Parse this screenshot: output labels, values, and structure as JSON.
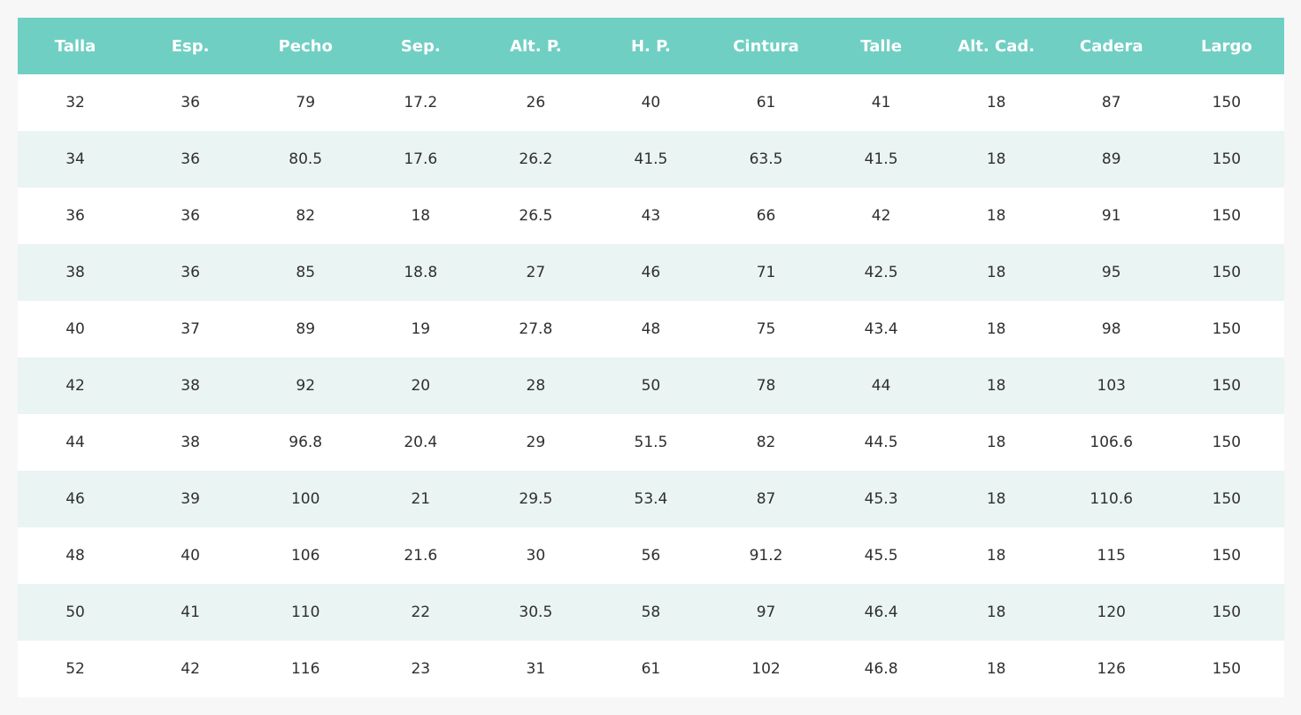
{
  "table": {
    "header": [
      "Talla",
      "Esp.",
      "Pecho",
      "Sep.",
      "Alt. P.",
      "H. P.",
      "Cintura",
      "Talle",
      "Alt. Cad.",
      "Cadera",
      "Largo"
    ],
    "rows": [
      [
        32,
        36,
        79,
        17.2,
        26,
        40,
        61,
        41,
        18,
        87,
        150
      ],
      [
        34,
        36,
        80.5,
        17.6,
        26.2,
        41.5,
        63.5,
        41.5,
        18,
        89,
        150
      ],
      [
        36,
        36,
        82,
        18,
        26.5,
        43,
        66,
        42,
        18,
        91,
        150
      ],
      [
        38,
        36,
        85,
        18.8,
        27,
        46,
        71,
        42.5,
        18,
        95,
        150
      ],
      [
        40,
        37,
        89,
        19,
        27.8,
        48,
        75,
        43.4,
        18,
        98,
        150
      ],
      [
        42,
        38,
        92,
        20,
        28,
        50,
        78,
        44,
        18,
        103,
        150
      ],
      [
        44,
        38,
        96.8,
        20.4,
        29,
        51.5,
        82,
        44.5,
        18,
        106.6,
        150
      ],
      [
        46,
        39,
        100,
        21,
        29.5,
        53.4,
        87,
        45.3,
        18,
        110.6,
        150
      ],
      [
        48,
        40,
        106,
        21.6,
        30,
        56,
        91.2,
        45.5,
        18,
        115,
        150
      ],
      [
        50,
        41,
        110,
        22,
        30.5,
        58,
        97,
        46.4,
        18,
        120,
        150
      ],
      [
        52,
        42,
        116,
        23,
        31,
        61,
        102,
        46.8,
        18,
        126,
        150
      ]
    ]
  }
}
